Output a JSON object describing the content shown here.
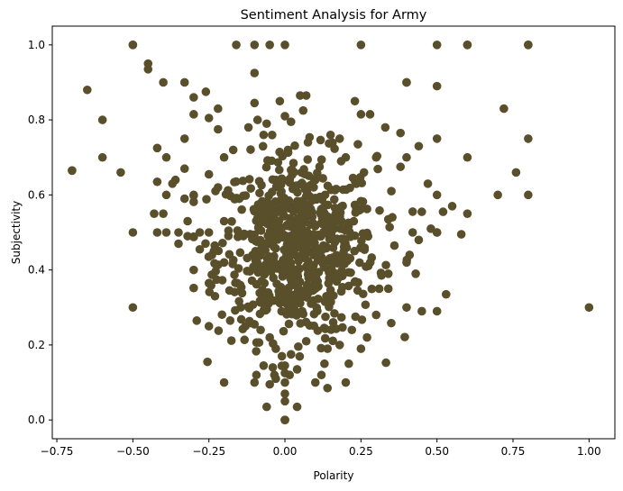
{
  "chart_data": {
    "type": "scatter",
    "title": "Sentiment Analysis for Army",
    "xlabel": "Polarity",
    "ylabel": "Subjectivity",
    "xlim": [
      -0.765,
      1.085
    ],
    "ylim": [
      -0.05,
      1.05
    ],
    "grid": false,
    "legend": "none",
    "marker_color": "#5a4f2b",
    "x_ticks": [
      -0.75,
      -0.5,
      -0.25,
      0.0,
      0.25,
      0.5,
      0.75,
      1.0
    ],
    "x_tick_labels": [
      "−0.75",
      "−0.50",
      "−0.25",
      "0.00",
      "0.25",
      "0.50",
      "0.75",
      "1.00"
    ],
    "y_ticks": [
      0.0,
      0.2,
      0.4,
      0.6,
      0.8,
      1.0
    ],
    "y_tick_labels": [
      "0.0",
      "0.2",
      "0.4",
      "0.6",
      "0.8",
      "1.0"
    ],
    "series": [
      {
        "values": [
          [
            -0.5,
            1.0
          ],
          [
            -0.5,
            1.0
          ],
          [
            -0.16,
            1.0
          ],
          [
            -0.1,
            1.0
          ],
          [
            -0.05,
            1.0
          ],
          [
            0.0,
            1.0
          ],
          [
            0.25,
            1.0
          ],
          [
            0.5,
            1.0
          ],
          [
            0.6,
            1.0
          ],
          [
            0.6,
            1.0
          ],
          [
            0.8,
            1.0
          ],
          [
            0.8,
            1.0
          ],
          [
            -0.45,
            0.95
          ],
          [
            -0.45,
            0.935
          ],
          [
            -0.1,
            0.925
          ],
          [
            -0.4,
            0.9
          ],
          [
            -0.33,
            0.9
          ],
          [
            0.4,
            0.9
          ],
          [
            0.4,
            0.9
          ],
          [
            0.5,
            0.89
          ],
          [
            -0.65,
            0.88
          ],
          [
            -0.26,
            0.875
          ],
          [
            -0.3,
            0.86
          ],
          [
            -0.22,
            0.83
          ],
          [
            0.05,
            0.865
          ],
          [
            0.07,
            0.865
          ],
          [
            0.23,
            0.85
          ],
          [
            -0.1,
            0.845
          ],
          [
            0.72,
            0.83
          ],
          [
            0.06,
            0.825
          ],
          [
            -0.6,
            0.8
          ],
          [
            0.25,
            0.815
          ],
          [
            0.28,
            0.815
          ],
          [
            -0.3,
            0.815
          ],
          [
            -0.25,
            0.805
          ],
          [
            0.0,
            0.81
          ],
          [
            0.02,
            0.795
          ],
          [
            -0.09,
            0.8
          ],
          [
            -0.06,
            0.79
          ],
          [
            -0.22,
            0.775
          ],
          [
            -0.12,
            0.78
          ],
          [
            0.33,
            0.78
          ],
          [
            -0.07,
            0.76
          ],
          [
            0.15,
            0.76
          ],
          [
            0.18,
            0.75
          ],
          [
            -0.33,
            0.75
          ],
          [
            0.38,
            0.765
          ],
          [
            0.5,
            0.75
          ],
          [
            0.8,
            0.75
          ],
          [
            0.24,
            0.735
          ],
          [
            -0.42,
            0.725
          ],
          [
            0.44,
            0.73
          ],
          [
            -0.17,
            0.72
          ],
          [
            0.01,
            0.72
          ],
          [
            -0.6,
            0.7
          ],
          [
            -0.39,
            0.7
          ],
          [
            -0.2,
            0.7
          ],
          [
            0.2,
            0.7
          ],
          [
            0.3,
            0.7
          ],
          [
            0.4,
            0.7
          ],
          [
            0.6,
            0.7
          ],
          [
            -0.7,
            0.665
          ],
          [
            -0.7,
            0.665
          ],
          [
            -0.54,
            0.66
          ],
          [
            -0.33,
            0.67
          ],
          [
            0.76,
            0.66
          ],
          [
            -0.25,
            0.655
          ],
          [
            0.26,
            0.66
          ],
          [
            0.38,
            0.675
          ],
          [
            -0.42,
            0.635
          ],
          [
            -0.36,
            0.64
          ],
          [
            -0.37,
            0.63
          ],
          [
            -0.22,
            0.62
          ],
          [
            0.1,
            0.64
          ],
          [
            0.47,
            0.63
          ],
          [
            -0.39,
            0.6
          ],
          [
            -0.3,
            0.6
          ],
          [
            0.7,
            0.6
          ],
          [
            0.8,
            0.6
          ],
          [
            0.5,
            0.6
          ],
          [
            0.35,
            0.61
          ],
          [
            -0.33,
            0.59
          ],
          [
            -0.15,
            0.59
          ],
          [
            0.55,
            0.57
          ],
          [
            0.45,
            0.555
          ],
          [
            -0.43,
            0.55
          ],
          [
            -0.4,
            0.55
          ],
          [
            0.6,
            0.55
          ],
          [
            0.52,
            0.555
          ],
          [
            -0.32,
            0.53
          ],
          [
            -0.2,
            0.53
          ],
          [
            0.34,
            0.535
          ],
          [
            -0.5,
            0.5
          ],
          [
            -0.42,
            0.5
          ],
          [
            -0.39,
            0.5
          ],
          [
            -0.35,
            0.5
          ],
          [
            -0.32,
            0.49
          ],
          [
            -0.28,
            0.5
          ],
          [
            -0.25,
            0.5
          ],
          [
            0.42,
            0.5
          ],
          [
            0.48,
            0.51
          ],
          [
            0.5,
            0.5
          ],
          [
            0.5,
            0.5
          ],
          [
            0.58,
            0.495
          ],
          [
            -0.35,
            0.47
          ],
          [
            0.44,
            0.48
          ],
          [
            -0.28,
            0.455
          ],
          [
            0.36,
            0.465
          ],
          [
            -0.24,
            0.44
          ],
          [
            0.41,
            0.44
          ],
          [
            -0.3,
            0.4
          ],
          [
            -0.2,
            0.42
          ],
          [
            0.4,
            0.42
          ],
          [
            0.34,
            0.39
          ],
          [
            -0.25,
            0.365
          ],
          [
            -0.23,
            0.33
          ],
          [
            0.43,
            0.39
          ],
          [
            0.34,
            0.35
          ],
          [
            0.31,
            0.35
          ],
          [
            0.53,
            0.335
          ],
          [
            -0.5,
            0.3
          ],
          [
            0.4,
            0.3
          ],
          [
            0.5,
            0.29
          ],
          [
            0.45,
            0.29
          ],
          [
            1.0,
            0.3
          ],
          [
            -0.29,
            0.265
          ],
          [
            -0.25,
            0.25
          ],
          [
            -0.18,
            0.265
          ],
          [
            0.3,
            0.28
          ],
          [
            -0.13,
            0.25
          ],
          [
            -0.08,
            0.24
          ],
          [
            0.22,
            0.24
          ],
          [
            0.27,
            0.22
          ],
          [
            -0.05,
            0.22
          ],
          [
            0.07,
            0.21
          ],
          [
            -0.03,
            0.19
          ],
          [
            0.14,
            0.19
          ],
          [
            0.18,
            0.2
          ],
          [
            0.25,
            0.19
          ],
          [
            0.02,
            0.175
          ],
          [
            -0.01,
            0.17
          ],
          [
            0.13,
            0.15
          ],
          [
            0.21,
            0.15
          ],
          [
            -0.07,
            0.145
          ],
          [
            -0.04,
            0.14
          ],
          [
            0.04,
            0.135
          ],
          [
            0.12,
            0.12
          ],
          [
            0.0,
            0.125
          ],
          [
            -0.03,
            0.11
          ],
          [
            -0.2,
            0.1
          ],
          [
            -0.1,
            0.1
          ],
          [
            -0.05,
            0.095
          ],
          [
            0.0,
            0.1
          ],
          [
            0.1,
            0.1
          ],
          [
            0.2,
            0.1
          ],
          [
            0.14,
            0.085
          ],
          [
            0.0,
            0.07
          ],
          [
            0.0,
            0.05
          ],
          [
            -0.06,
            0.035
          ],
          [
            0.04,
            0.035
          ],
          [
            0.0,
            0.0
          ],
          [
            0.0,
            0.0
          ],
          [
            0.0,
            0.0
          ]
        ]
      }
    ],
    "dense_core": {
      "x_mean": 0.04,
      "x_sd": 0.13,
      "y_mean": 0.46,
      "y_sd": 0.12,
      "count": 700
    }
  }
}
